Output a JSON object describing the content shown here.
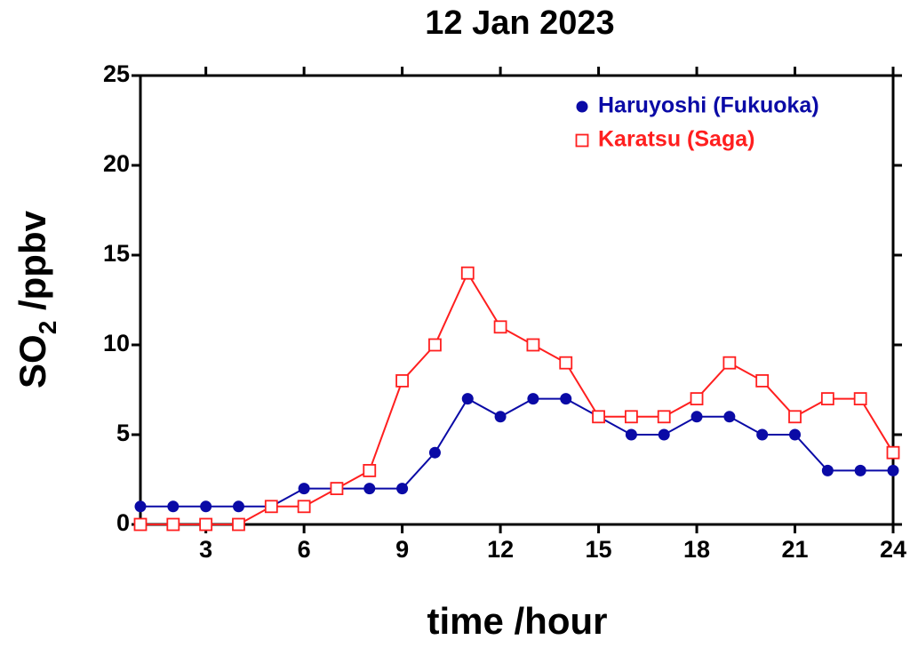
{
  "chart_data": {
    "type": "line",
    "title": "12 Jan 2023",
    "x_label": "time /hour",
    "y_label": [
      "SO",
      "2",
      " /ppbv"
    ],
    "x": [
      1,
      2,
      3,
      4,
      5,
      6,
      7,
      8,
      9,
      10,
      11,
      12,
      13,
      14,
      15,
      16,
      17,
      18,
      19,
      20,
      21,
      22,
      23,
      24
    ],
    "series": [
      {
        "name": "Haruyoshi (Fukuoka)",
        "color": "#0a0aa6",
        "marker": "circle",
        "values": [
          1,
          1,
          1,
          1,
          1,
          2,
          2,
          2,
          2,
          4,
          7,
          6,
          7,
          7,
          6,
          5,
          5,
          6,
          6,
          5,
          5,
          3,
          3,
          3
        ]
      },
      {
        "name": "Karatsu (Saga)",
        "color": "#ff1f1f",
        "marker": "square",
        "values": [
          0,
          0,
          0,
          0,
          1,
          1,
          2,
          3,
          8,
          10,
          14,
          11,
          10,
          9,
          6,
          6,
          6,
          7,
          9,
          8,
          6,
          7,
          7,
          4
        ]
      }
    ],
    "xlim": [
      1,
      24
    ],
    "xticks": [
      3,
      6,
      9,
      12,
      15,
      18,
      21,
      24
    ],
    "ylim": [
      0,
      25
    ],
    "yticks": [
      0,
      5,
      10,
      15,
      20,
      25
    ],
    "grid": false,
    "legend": "top-right"
  }
}
